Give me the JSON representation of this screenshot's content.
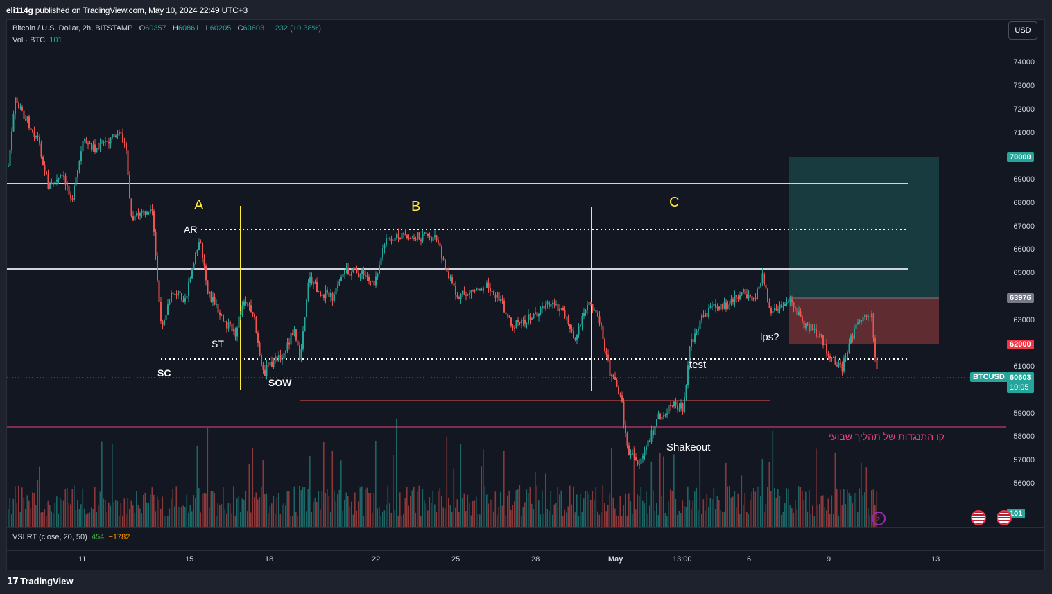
{
  "publisher": {
    "user": "eli114g",
    "text": "published on TradingView.com, May 10, 2024 22:49 UTC+3"
  },
  "legend": {
    "symbol": "Bitcoin / U.S. Dollar, 2h, BITSTAMP",
    "o_label": "O",
    "o": "60357",
    "h_label": "H",
    "h": "60861",
    "l_label": "L",
    "l": "60205",
    "c_label": "C",
    "c": "60603",
    "change": "+232 (+0.38%)",
    "vol_label": "Vol · BTC",
    "vol": "101"
  },
  "indicator": {
    "label": "VSLRT (close, 20, 50)",
    "v1": "454",
    "v2": "−1782"
  },
  "currency_button": "USD",
  "price_axis": [
    "74000",
    "73000",
    "72000",
    "71000",
    "69000",
    "68000",
    "67000",
    "66000",
    "65000",
    "63000",
    "61000",
    "59000",
    "58000",
    "57000",
    "56000"
  ],
  "price_tags": {
    "t70000": "70000",
    "t63976": "63976",
    "t62000": "62000",
    "symbol": "BTCUSD",
    "last": "60603",
    "countdown": "10:05",
    "vol": "101"
  },
  "time_axis": [
    "11",
    "15",
    "18",
    "22",
    "25",
    "28",
    "May",
    "13:00",
    "6",
    "9",
    "13"
  ],
  "annotations": {
    "A": "A",
    "B": "B",
    "C": "C",
    "AR": "AR",
    "ST": "ST",
    "SC": "SC",
    "SOW": "SOW",
    "test": "test",
    "lps": "lps?",
    "shakeout": "Shakeout",
    "resistance": "קו התנגדות של תהליך שבועי"
  },
  "brand": "TradingView",
  "colors": {
    "up": "#26a69a",
    "down": "#ef5350",
    "bg": "#131722",
    "yellow": "#ffeb3b",
    "pink": "#ec407a"
  }
}
